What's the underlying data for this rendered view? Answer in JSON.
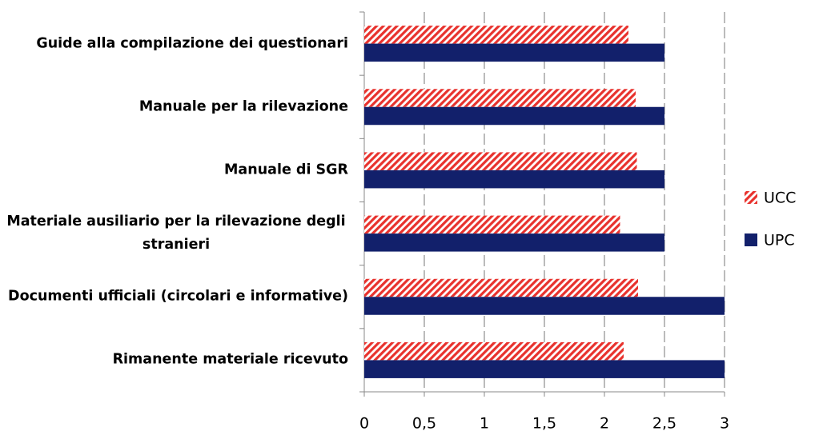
{
  "chart_data": {
    "type": "hbar",
    "categories": [
      "Guide alla compilazione dei questionari",
      "Manuale per la rilevazione",
      "Manuale di SGR",
      "Materiale ausiliario per la rilevazione degli stranieri",
      "Documenti ufficiali (circolari e informative)",
      "Rimanente materiale ricevuto"
    ],
    "series": [
      {
        "name": "UCC",
        "color": "#e8322d",
        "pattern": "hatch",
        "values": [
          2.2,
          2.26,
          2.27,
          2.13,
          2.28,
          2.16
        ]
      },
      {
        "name": "UPC",
        "color": "#12206b",
        "values": [
          2.5,
          2.5,
          2.5,
          2.5,
          3,
          3
        ]
      }
    ],
    "xlim": [
      0,
      3
    ],
    "xticks": [
      0,
      {
        "value": 0.5,
        "label": "0,5"
      },
      1,
      {
        "value": 1.5,
        "label": "1,5"
      },
      2,
      {
        "value": 2.5,
        "label": "2,5"
      },
      3
    ],
    "grid": true,
    "legend": "right"
  }
}
